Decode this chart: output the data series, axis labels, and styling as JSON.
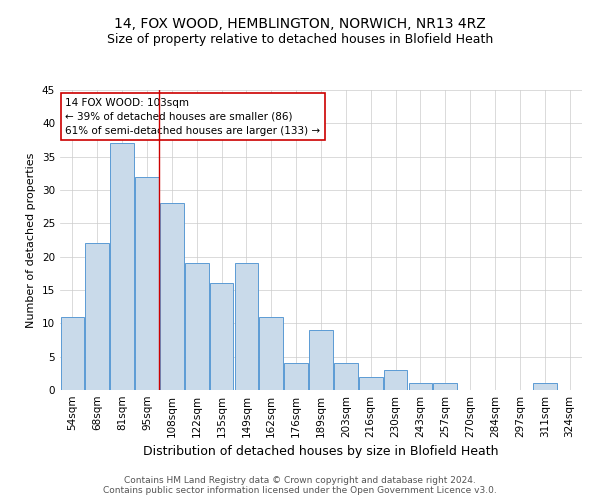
{
  "title1": "14, FOX WOOD, HEMBLINGTON, NORWICH, NR13 4RZ",
  "title2": "Size of property relative to detached houses in Blofield Heath",
  "xlabel": "Distribution of detached houses by size in Blofield Heath",
  "ylabel": "Number of detached properties",
  "categories": [
    "54sqm",
    "68sqm",
    "81sqm",
    "95sqm",
    "108sqm",
    "122sqm",
    "135sqm",
    "149sqm",
    "162sqm",
    "176sqm",
    "189sqm",
    "203sqm",
    "216sqm",
    "230sqm",
    "243sqm",
    "257sqm",
    "270sqm",
    "284sqm",
    "297sqm",
    "311sqm",
    "324sqm"
  ],
  "values": [
    11,
    22,
    37,
    32,
    28,
    19,
    16,
    19,
    11,
    4,
    9,
    4,
    2,
    3,
    1,
    1,
    0,
    0,
    0,
    1,
    0
  ],
  "bar_color": "#c9daea",
  "bar_edge_color": "#5b9bd5",
  "vline_x_index": 4,
  "vline_color": "#cc0000",
  "annotation_line1": "14 FOX WOOD: 103sqm",
  "annotation_line2": "← 39% of detached houses are smaller (86)",
  "annotation_line3": "61% of semi-detached houses are larger (133) →",
  "annotation_box_color": "#ffffff",
  "annotation_box_edge_color": "#cc0000",
  "ylim": [
    0,
    45
  ],
  "yticks": [
    0,
    5,
    10,
    15,
    20,
    25,
    30,
    35,
    40,
    45
  ],
  "footer1": "Contains HM Land Registry data © Crown copyright and database right 2024.",
  "footer2": "Contains public sector information licensed under the Open Government Licence v3.0.",
  "background_color": "#ffffff",
  "grid_color": "#cccccc",
  "title1_fontsize": 10,
  "title2_fontsize": 9,
  "xlabel_fontsize": 9,
  "ylabel_fontsize": 8,
  "tick_fontsize": 7.5,
  "annotation_fontsize": 7.5,
  "footer_fontsize": 6.5
}
